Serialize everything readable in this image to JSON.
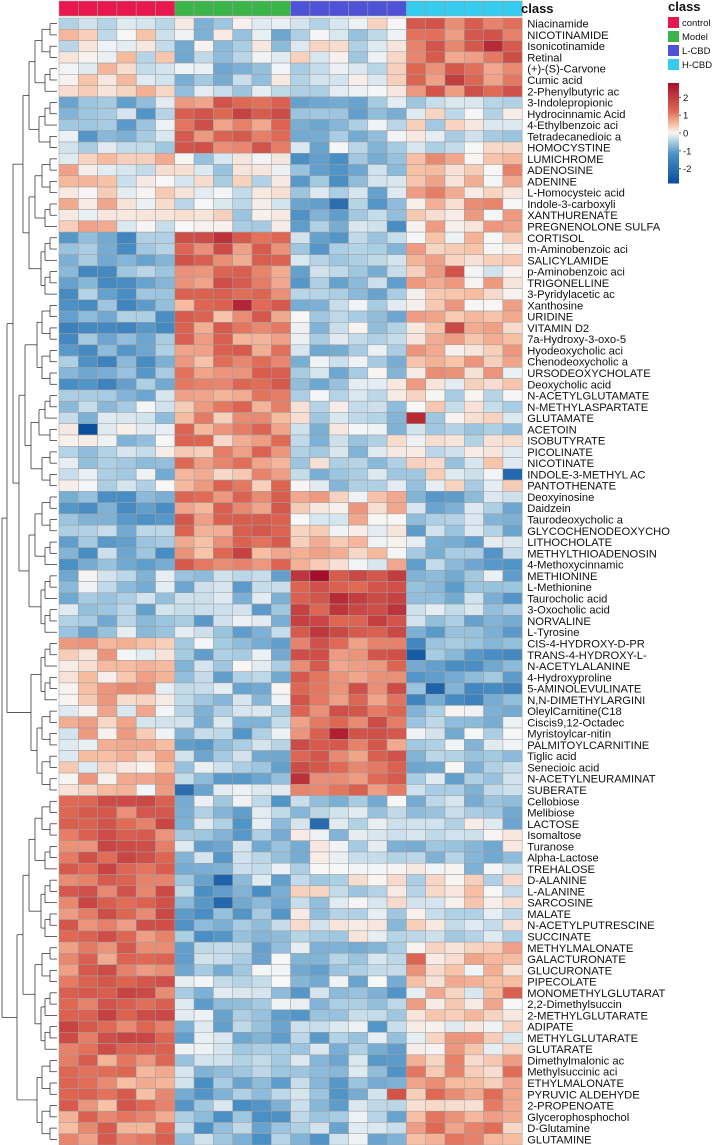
{
  "chart_data": {
    "type": "heatmap",
    "title": "",
    "n_samples": 24,
    "column_annotation": {
      "title": "class",
      "groups": [
        {
          "name": "control",
          "count": 6,
          "color": "#E8174E"
        },
        {
          "name": "Model",
          "count": 6,
          "color": "#3BB44A"
        },
        {
          "name": "L-CBD",
          "count": 6,
          "color": "#4D52D6"
        },
        {
          "name": "H-CBD",
          "count": 6,
          "color": "#35CCF0"
        }
      ]
    },
    "annotation_label": "class",
    "color_scale": {
      "min": -2.8,
      "max": 2.8,
      "ticks": [
        2,
        1,
        0,
        -1,
        -2
      ],
      "low_color": "#0B4F9E",
      "mid_color": "#F7F7F7",
      "high_color": "#A50F2A"
    },
    "rows": [
      "Niacinamide",
      "NICOTINAMIDE",
      "Isonicotinamide",
      "Retinal",
      "(+)-(S)-Carvone",
      "Cumic acid",
      "2-Phenylbutyric ac",
      "3-Indolepropionic",
      "Hydrocinnamic Acid",
      "4-Ethylbenzoic aci",
      "Tetradecanedioic a",
      "HOMOCYSTINE",
      "LUMICHROME",
      "ADENOSINE",
      "ADENINE",
      "L-Homocysteic acid",
      "Indole-3-carboxyli",
      "XANTHURENATE",
      "PREGNENOLONE SULFA",
      "CORTISOL",
      "m-Aminobenzoic aci",
      "SALICYLAMIDE",
      "p-Aminobenzoic aci",
      "TRIGONELLINE",
      "3-Pyridylacetic ac",
      "Xanthosine",
      "URIDINE",
      "VITAMIN D2",
      "7a-Hydroxy-3-oxo-5",
      "Hyodeoxycholic aci",
      "Chenodeoxycholic a",
      "URSODEOXYCHOLATE",
      "Deoxycholic acid",
      "N-ACETYLGLUTAMATE",
      "N-METHYLASPARTATE",
      "GLUTAMATE",
      "ACETOIN",
      "ISOBUTYRATE",
      "PICOLINATE",
      "NICOTINATE",
      "INDOLE-3-METHYL AC",
      "PANTOTHENATE",
      "Deoxyinosine",
      "Daidzein",
      "Taurodeoxycholic a",
      "GLYCOCHENODEOXYCHO",
      "LITHOCHOLATE",
      "METHYLTHIOADENOSIN",
      "4-Methoxycinnamic",
      "METHIONINE",
      "L-Methionine",
      "Taurocholic acid",
      "3-Oxocholic acid",
      "NORVALINE",
      "L-Tyrosine",
      "CIS-4-HYDROXY-D-PR",
      "TRANS-4-HYDROXY-L-",
      "N-ACETYLALANINE",
      "4-Hydroxyproline",
      "5-AMINOLEVULINATE",
      "N,N-DIMETHYLARGINI",
      "OleylCarnitine(C18",
      "Ciscis9,12-Octadec",
      "Myristoylcar-nitin",
      "PALMITOYLCARNITINE",
      "Tiglic acid",
      "Senecioic acid",
      "N-ACETYLNEURAMINAT",
      "SUBERATE",
      "Cellobiose",
      "Melibiose",
      "LACTOSE",
      "Isomaltose",
      "Turanose",
      "Alpha-Lactose",
      "TREHALOSE",
      "D-ALANINE",
      "L-ALANINE",
      "SARCOSINE",
      "MALATE",
      "N-ACETYLPUTRESCINE",
      "SUCCINATE",
      "METHYLMALONATE",
      "GALACTURONATE",
      "GLUCURONATE",
      "PIPECOLATE",
      "MONOMETHYLGLUTARAT",
      "2,2-Dimethylsuccin",
      "2-METHYLGLUTARATE",
      "ADIPATE",
      "METHYLGLUTARATE",
      "GLUTARATE",
      "Dimethylmalonic ac",
      "Methylsuccinic aci",
      "ETHYLMALONATE",
      "PYRUVIC ALDEHYDE",
      "2-PROPENOATE",
      "Glycerophosphochol",
      "D-Glutamine",
      "GLUTAMINE"
    ],
    "row_profiles": [
      {
        "from": 0,
        "to": 6,
        "means": [
          0.1,
          -0.4,
          -0.2,
          1.2
        ],
        "peaks": [
          [
            2,
            22,
            2.3
          ],
          [
            5,
            20,
            2.0
          ]
        ]
      },
      {
        "from": 7,
        "to": 11,
        "means": [
          -0.6,
          1.2,
          -0.5,
          -0.1
        ],
        "peaks": [
          [
            8,
            9,
            1.9
          ]
        ]
      },
      {
        "from": 12,
        "to": 18,
        "means": [
          0.2,
          -0.2,
          -0.7,
          0.5
        ],
        "peaks": [
          [
            16,
            14,
            -2.0
          ]
        ]
      },
      {
        "from": 19,
        "to": 24,
        "means": [
          -0.9,
          1.2,
          -0.6,
          0.3
        ],
        "peaks": [
          [
            19,
            8,
            2.2
          ],
          [
            22,
            20,
            1.6
          ]
        ]
      },
      {
        "from": 25,
        "to": 32,
        "means": [
          -1.0,
          1.0,
          -0.4,
          0.4
        ],
        "peaks": [
          [
            25,
            9,
            2.4
          ],
          [
            27,
            20,
            1.8
          ]
        ]
      },
      {
        "from": 33,
        "to": 41,
        "means": [
          -0.4,
          0.8,
          -0.3,
          -0.1
        ],
        "peaks": [
          [
            36,
            1,
            -2.8
          ],
          [
            35,
            18,
            2.3
          ],
          [
            40,
            23,
            -2.2
          ]
        ]
      },
      {
        "from": 42,
        "to": 48,
        "means": [
          -0.8,
          1.0,
          0.3,
          -0.6
        ],
        "peaks": [
          [
            47,
            9,
            1.9
          ]
        ]
      },
      {
        "from": 49,
        "to": 54,
        "means": [
          -0.5,
          -0.6,
          1.7,
          -0.6
        ],
        "peaks": [
          [
            49,
            13,
            2.8
          ],
          [
            51,
            14,
            2.3
          ]
        ]
      },
      {
        "from": 55,
        "to": 60,
        "means": [
          0.4,
          -0.5,
          1.2,
          -1.0
        ],
        "peaks": [
          [
            56,
            18,
            -2.5
          ],
          [
            59,
            19,
            -2.3
          ]
        ]
      },
      {
        "from": 61,
        "to": 68,
        "means": [
          0.3,
          -0.6,
          1.2,
          -0.5
        ],
        "peaks": [
          [
            63,
            14,
            2.5
          ],
          [
            67,
            12,
            2.2
          ],
          [
            68,
            6,
            -2.0
          ]
        ]
      },
      {
        "from": 69,
        "to": 75,
        "means": [
          1.4,
          -0.6,
          -0.4,
          -0.4
        ],
        "peaks": [
          [
            71,
            13,
            -2.1
          ]
        ]
      },
      {
        "from": 76,
        "to": 81,
        "means": [
          1.3,
          -0.7,
          -0.2,
          0.0
        ],
        "peaks": [
          [
            76,
            8,
            -2.3
          ],
          [
            78,
            8,
            -2.2
          ]
        ]
      },
      {
        "from": 82,
        "to": 85,
        "means": [
          1.2,
          -0.5,
          -0.5,
          0.5
        ],
        "peaks": [
          [
            83,
            18,
            1.3
          ]
        ]
      },
      {
        "from": 86,
        "to": 91,
        "means": [
          1.4,
          -0.6,
          -0.6,
          0.3
        ],
        "peaks": [
          [
            86,
            23,
            1.4
          ]
        ]
      },
      {
        "from": 92,
        "to": 99,
        "means": [
          1.0,
          -0.7,
          -0.6,
          0.7
        ],
        "peaks": [
          [
            95,
            17,
            1.6
          ]
        ]
      }
    ]
  }
}
